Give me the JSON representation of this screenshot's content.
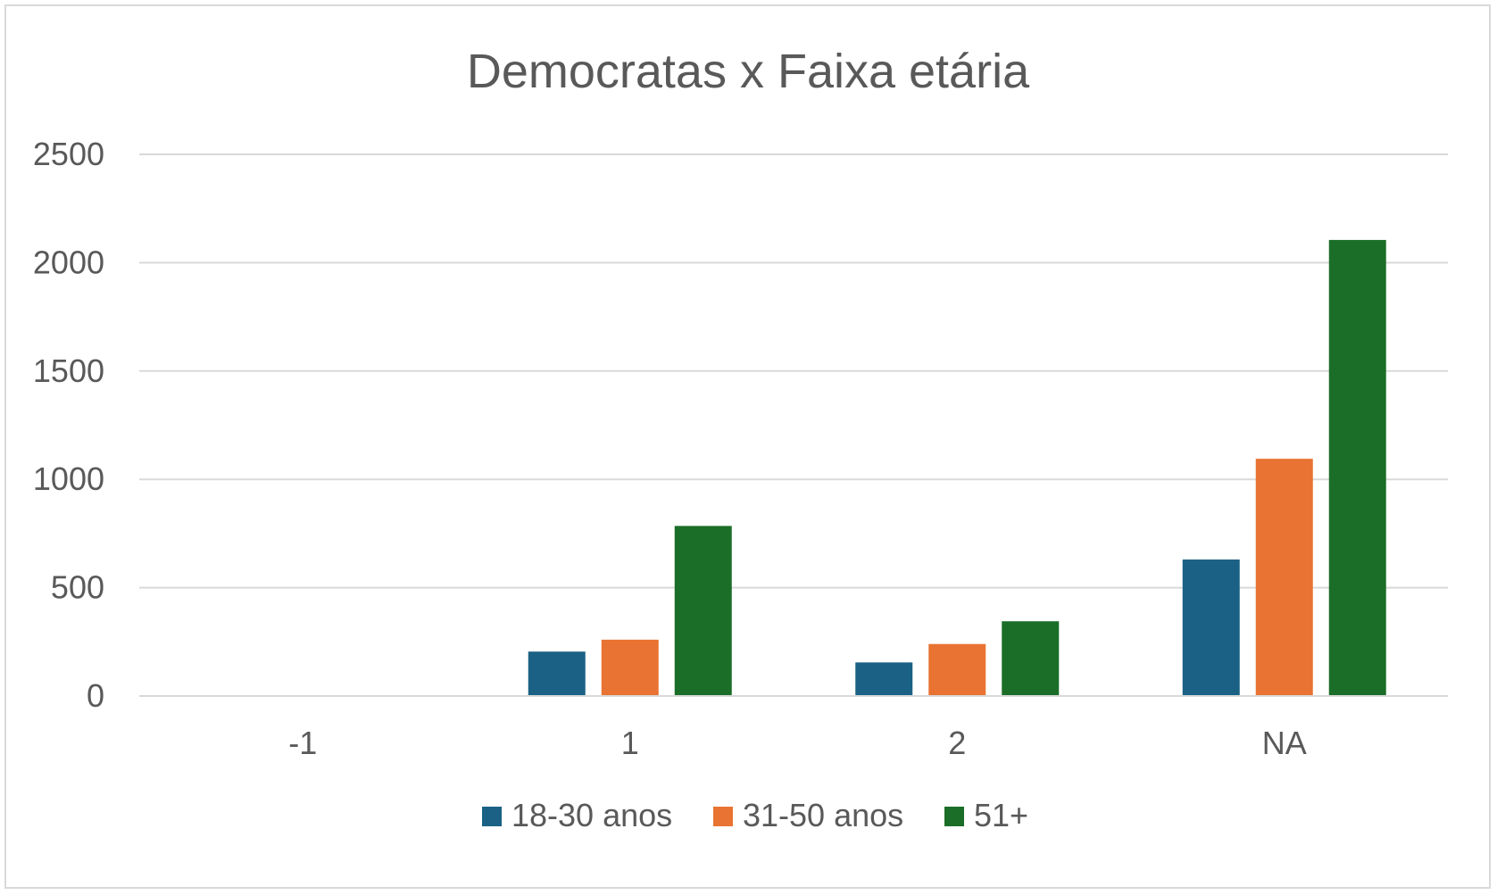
{
  "chart_data": {
    "type": "bar",
    "title": "Democratas x  Faixa etária",
    "xlabel": "",
    "ylabel": "",
    "categories": [
      "-1",
      "1",
      "2",
      "NA"
    ],
    "series": [
      {
        "name": "18-30 anos",
        "color": "#1a6185",
        "values": [
          0,
          205,
          155,
          630
        ]
      },
      {
        "name": "31-50 anos",
        "color": "#e87332",
        "values": [
          0,
          260,
          240,
          1095
        ]
      },
      {
        "name": "51+",
        "color": "#1b6e27",
        "values": [
          0,
          785,
          345,
          2105
        ]
      }
    ],
    "ylim": [
      0,
      2500
    ],
    "yticks": [
      "0",
      "500",
      "1000",
      "1500",
      "2000",
      "2500"
    ],
    "grid": true,
    "legend_position": "bottom"
  }
}
